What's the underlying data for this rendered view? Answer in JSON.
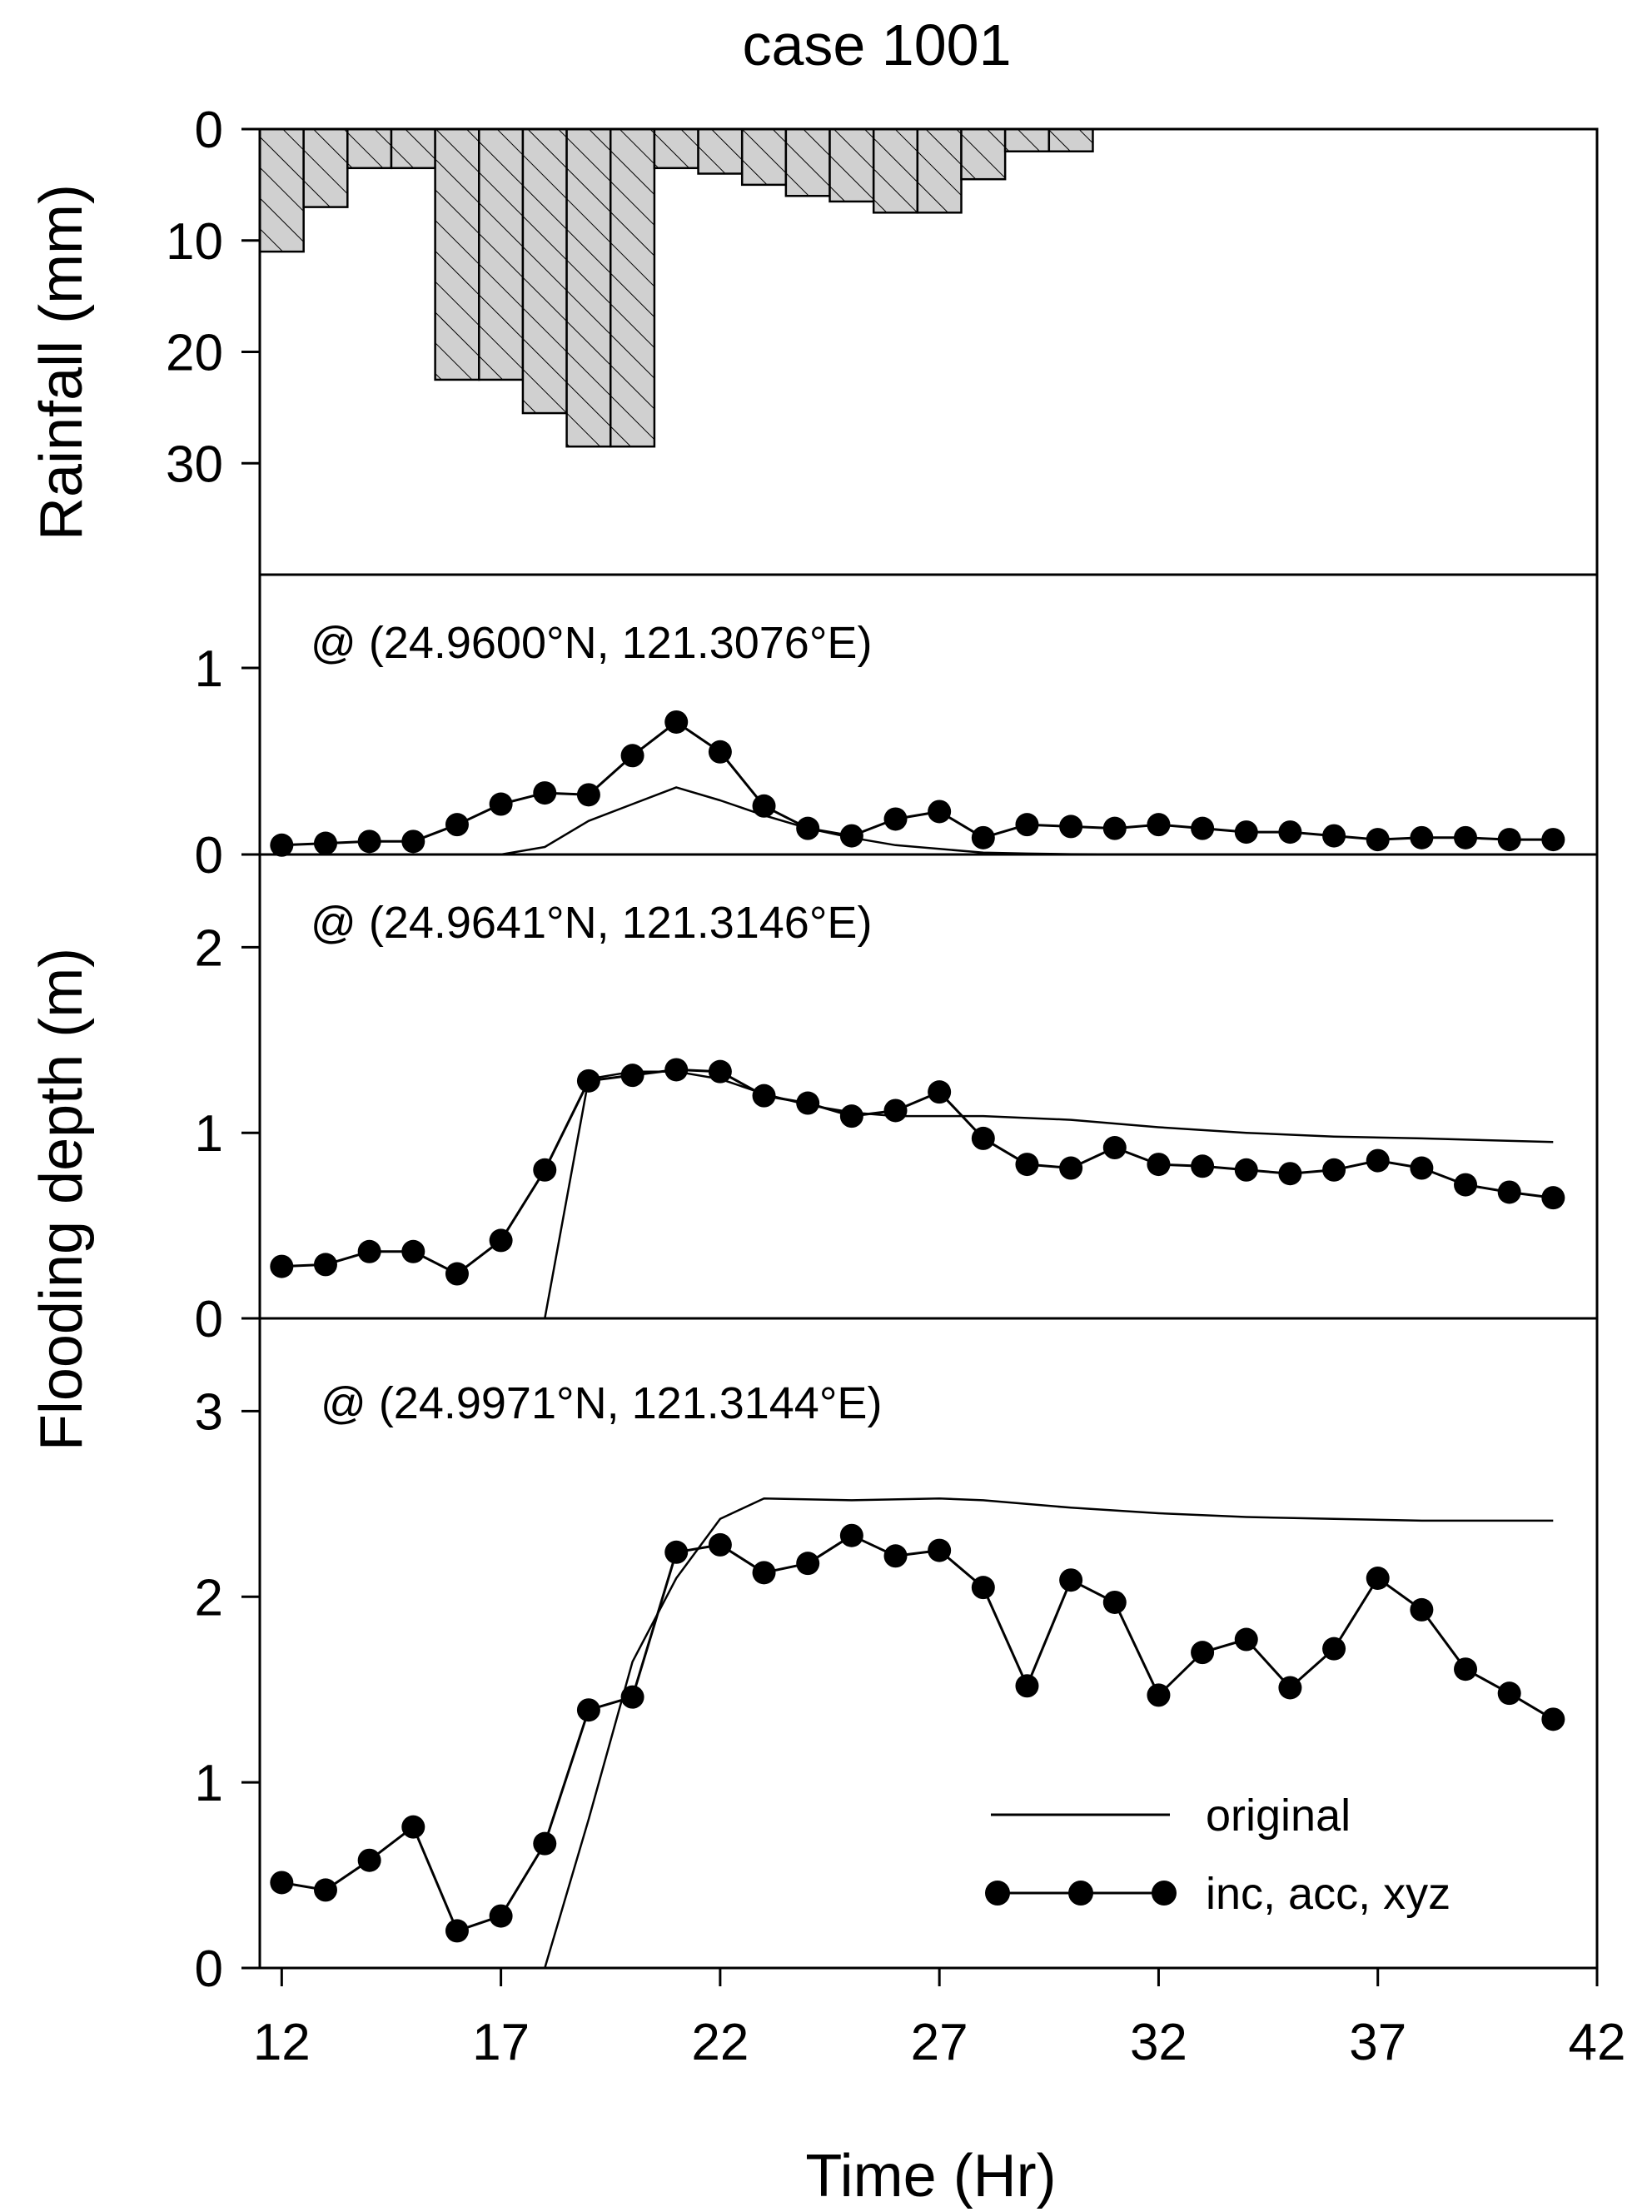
{
  "chart_data": {
    "type": "composite",
    "title": "case 1001",
    "x_axis": {
      "label": "Time (Hr)",
      "range": [
        11.5,
        42
      ],
      "ticks": [
        12,
        17,
        22,
        27,
        32,
        37,
        42
      ],
      "tick_labels": [
        "12",
        "17",
        "22",
        "27",
        "32",
        "37",
        "42"
      ]
    },
    "panels": [
      {
        "id": "rain",
        "type": "bar",
        "orientation": "hanging",
        "ylabel": "Rainfall (mm)",
        "ylim": [
          0,
          40
        ],
        "inverted": true,
        "ticks": [
          0,
          10,
          20,
          30
        ],
        "tick_labels": [
          "0",
          "10",
          "20",
          "30"
        ],
        "bar_width": 1,
        "bar_start": 11.5,
        "values": [
          11,
          7,
          3.5,
          3.5,
          22.5,
          22.5,
          25.5,
          28.5,
          28.5,
          3.5,
          4,
          5,
          6,
          6.5,
          7.5,
          7.5,
          4.5,
          2,
          2
        ],
        "fill": "#d0d0d0",
        "hatch": "diagonal"
      },
      {
        "id": "site1",
        "type": "line",
        "annotation": "@ (24.9600°N, 121.3076°E)",
        "ylim": [
          0,
          1.5
        ],
        "ticks": [
          0,
          1
        ],
        "tick_labels": [
          "0",
          "1"
        ],
        "series": [
          {
            "name": "original",
            "marker": "none",
            "x": [
              12,
              17,
              18,
              19,
              20,
              21,
              22,
              23,
              24,
              25,
              26,
              27,
              28,
              29,
              30,
              32,
              35,
              41
            ],
            "y": [
              0,
              0,
              0.04,
              0.18,
              0.27,
              0.36,
              0.29,
              0.21,
              0.14,
              0.09,
              0.05,
              0.03,
              0.01,
              0.005,
              0.002,
              0,
              0,
              0
            ]
          },
          {
            "name": "inc, acc, xyz",
            "marker": "circle",
            "x": [
              12,
              13,
              14,
              15,
              16,
              17,
              18,
              19,
              20,
              21,
              22,
              23,
              24,
              25,
              26,
              27,
              28,
              29,
              30,
              31,
              32,
              33,
              34,
              35,
              36,
              37,
              38,
              39,
              40,
              41
            ],
            "y": [
              0.05,
              0.06,
              0.07,
              0.07,
              0.16,
              0.27,
              0.33,
              0.32,
              0.53,
              0.71,
              0.55,
              0.26,
              0.14,
              0.1,
              0.19,
              0.23,
              0.09,
              0.16,
              0.15,
              0.14,
              0.16,
              0.14,
              0.12,
              0.12,
              0.1,
              0.08,
              0.09,
              0.09,
              0.08,
              0.08
            ]
          }
        ]
      },
      {
        "id": "site2",
        "type": "line",
        "annotation": "@ (24.9641°N, 121.3146°E)",
        "ylabel": "Flooding depth (m)",
        "ylim": [
          0,
          2.5
        ],
        "ticks": [
          0,
          1,
          2
        ],
        "tick_labels": [
          "0",
          "1",
          "2"
        ],
        "series": [
          {
            "name": "original",
            "marker": "none",
            "x": [
              12,
              18,
              19,
              20,
              21,
              22,
              23,
              24,
              25,
              26,
              27,
              28,
              30,
              32,
              34,
              36,
              38,
              41
            ],
            "y": [
              0,
              0,
              1.29,
              1.33,
              1.33,
              1.29,
              1.21,
              1.15,
              1.11,
              1.09,
              1.09,
              1.09,
              1.07,
              1.03,
              1.0,
              0.98,
              0.97,
              0.95
            ]
          },
          {
            "name": "inc, acc, xyz",
            "marker": "circle",
            "x": [
              12,
              13,
              14,
              15,
              16,
              17,
              18,
              19,
              20,
              21,
              22,
              23,
              24,
              25,
              26,
              27,
              28,
              29,
              30,
              31,
              32,
              33,
              34,
              35,
              36,
              37,
              38,
              39,
              40,
              41
            ],
            "y": [
              0.28,
              0.29,
              0.36,
              0.36,
              0.24,
              0.42,
              0.8,
              1.28,
              1.31,
              1.34,
              1.33,
              1.2,
              1.16,
              1.09,
              1.12,
              1.22,
              0.97,
              0.83,
              0.81,
              0.92,
              0.83,
              0.82,
              0.8,
              0.78,
              0.8,
              0.85,
              0.81,
              0.72,
              0.68,
              0.65
            ]
          }
        ]
      },
      {
        "id": "site3",
        "type": "line",
        "annotation": "@ (24.9971°N, 121.3144°E)",
        "ylim": [
          0,
          3.5
        ],
        "ticks": [
          0,
          1,
          2,
          3
        ],
        "tick_labels": [
          "0",
          "1",
          "2",
          "3"
        ],
        "series": [
          {
            "name": "original",
            "marker": "none",
            "x": [
              12,
              18,
              19,
              20,
              21,
              22,
              23,
              25,
              27,
              28,
              30,
              32,
              34,
              36,
              38,
              41
            ],
            "y": [
              0,
              0,
              0.8,
              1.65,
              2.1,
              2.42,
              2.53,
              2.52,
              2.53,
              2.52,
              2.48,
              2.45,
              2.43,
              2.42,
              2.41,
              2.41
            ]
          },
          {
            "name": "inc, acc, xyz",
            "marker": "circle",
            "x": [
              12,
              13,
              14,
              15,
              16,
              17,
              18,
              19,
              20,
              21,
              22,
              23,
              24,
              25,
              26,
              27,
              28,
              29,
              30,
              31,
              32,
              33,
              34,
              35,
              36,
              37,
              38,
              39,
              40,
              41
            ],
            "y": [
              0.46,
              0.42,
              0.58,
              0.76,
              0.2,
              0.28,
              0.67,
              1.39,
              1.46,
              2.24,
              2.28,
              2.13,
              2.18,
              2.33,
              2.22,
              2.25,
              2.05,
              1.52,
              2.09,
              1.97,
              1.47,
              1.7,
              1.77,
              1.51,
              1.72,
              2.1,
              1.93,
              1.61,
              1.48,
              1.34
            ]
          }
        ]
      }
    ],
    "legend": {
      "placement": "bottom-right",
      "entries": [
        {
          "label": "original",
          "style": "line"
        },
        {
          "label": "inc, acc, xyz",
          "style": "line-circle"
        }
      ]
    }
  }
}
